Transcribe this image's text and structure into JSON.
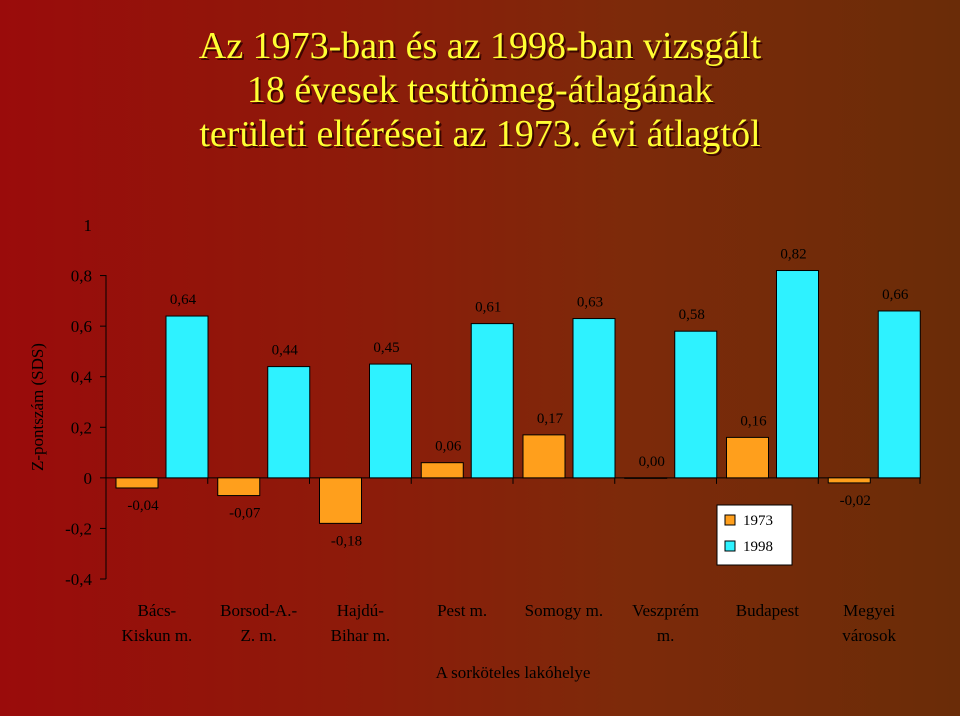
{
  "title": {
    "line1": "Az 1973-ban és az 1998-ban vizsgált",
    "line2": "18 évesek testtömeg-átlagának",
    "line3": "területi eltérései az 1973. évi átlagtól"
  },
  "colors": {
    "s1973": "#ff9f1c",
    "s1998": "#2ef2ff",
    "title": "#ffff33"
  },
  "chart_data": {
    "type": "bar",
    "categories": [
      [
        "Bács-",
        "Kiskun m."
      ],
      [
        "Borsod-A.-",
        "Z. m."
      ],
      [
        "Hajdú-",
        "Bihar m."
      ],
      [
        "Pest m."
      ],
      [
        "Somogy m."
      ],
      [
        "Veszprém",
        "m."
      ],
      [
        "Budapest"
      ],
      [
        "Megyei",
        "városok"
      ]
    ],
    "series": [
      {
        "name": "1973",
        "values": [
          -0.04,
          -0.07,
          -0.18,
          0.06,
          0.17,
          0.0,
          0.16,
          -0.02
        ],
        "labels": [
          "-0,04",
          "-0,07",
          "-0,18",
          "0,06",
          "0,17",
          "0,00",
          "0,16",
          "-0,02"
        ]
      },
      {
        "name": "1998",
        "values": [
          0.64,
          0.44,
          0.45,
          0.61,
          0.63,
          0.58,
          0.82,
          0.66
        ],
        "labels": [
          "0,64",
          "0,44",
          "0,45",
          "0,61",
          "0,63",
          "0,58",
          "0,82",
          "0,66"
        ]
      }
    ],
    "xlabel": "A sorköteles lakóhelye",
    "ylabel": "Z-pontszám (SDS)",
    "ylim": [
      -0.4,
      1
    ],
    "yticks": [
      1,
      0.8,
      0.6,
      0.4,
      0.2,
      0,
      -0.2,
      -0.4
    ],
    "ytick_labels": [
      "1",
      "0,8",
      "0,6",
      "0,4",
      "0,2",
      "0",
      "-0,2",
      "-0,4"
    ],
    "legend_position": "bottom-right",
    "grid": false
  }
}
